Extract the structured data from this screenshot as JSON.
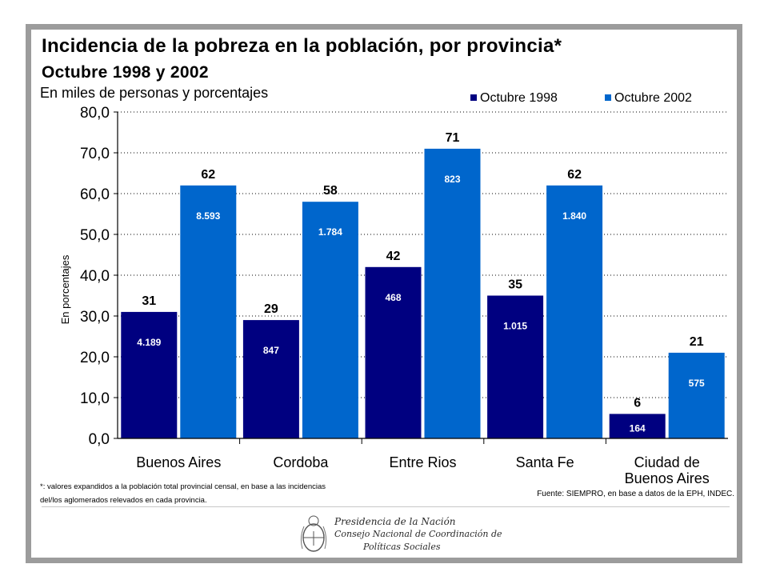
{
  "header": {
    "title": "Incidencia de la pobreza en la población, por provincia*",
    "subtitle": "Octubre 1998 y 2002",
    "units": "En miles de personas y porcentajes"
  },
  "footer": {
    "footnote": "*: valores expandidos a la población total provincial censal, en base a las incidencias del/los aglomerados relevados en cada provincia.",
    "source": "Fuente: SIEMPRO, en base a datos de la EPH, INDEC.",
    "logo_lines": [
      "Presidencia de la Nación",
      "Consejo Nacional de Coordinación de",
      "Políticas Sociales"
    ]
  },
  "colors": {
    "series_1998": "#000080",
    "series_2002": "#0066cc",
    "frame": "#9c9c9c"
  },
  "chart_data": {
    "type": "bar",
    "title": "Incidencia de la pobreza en la población, por provincia*",
    "subtitle": "Octubre 1998 y 2002",
    "ylabel": "En porcentajes",
    "xlabel": "",
    "ylim": [
      0,
      80
    ],
    "yticks": [
      0,
      10,
      20,
      30,
      40,
      50,
      60,
      70,
      80
    ],
    "ytick_labels": [
      "0,0",
      "10,0",
      "20,0",
      "30,0",
      "40,0",
      "50,0",
      "60,0",
      "70,0",
      "80,0"
    ],
    "grid": "horizontal",
    "legend_position": "top-right",
    "categories": [
      "Buenos Aires",
      "Cordoba",
      "Entre Rios",
      "Santa Fe",
      "Ciudad de Buenos Aires"
    ],
    "series": [
      {
        "name": "Octubre 1998",
        "values": [
          31,
          29,
          42,
          35,
          6
        ],
        "value_labels": [
          "31",
          "29",
          "42",
          "35",
          "6"
        ],
        "inner_labels": [
          "4.189",
          "847",
          "468",
          "1.015",
          "164"
        ]
      },
      {
        "name": "Octubre 2002",
        "values": [
          62,
          58,
          71,
          62,
          21
        ],
        "value_labels": [
          "62",
          "58",
          "71",
          "62",
          "21"
        ],
        "inner_labels": [
          "8.593",
          "1.784",
          "823",
          "1.840",
          "575"
        ]
      }
    ]
  }
}
